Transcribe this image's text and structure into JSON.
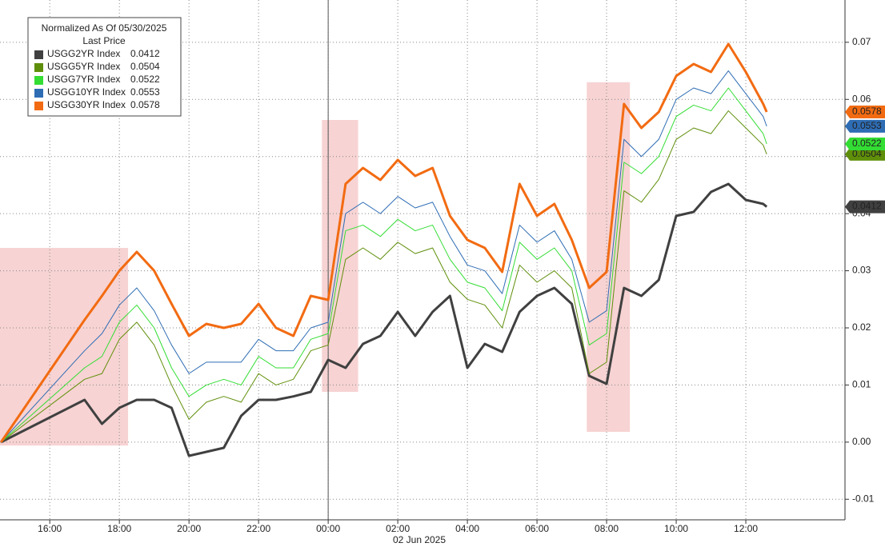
{
  "chart_data": {
    "type": "line",
    "legend_title": "Normalized As Of 05/30/2025",
    "legend_subtitle": "Last Price",
    "x_annotation": "02 Jun 2025",
    "x": [
      14.6,
      17.0,
      17.5,
      18.0,
      18.5,
      19.0,
      19.5,
      20.0,
      20.5,
      21.0,
      21.5,
      22.0,
      22.5,
      23.0,
      23.5,
      24.0,
      24.5,
      25.0,
      25.5,
      26.0,
      26.5,
      27.0,
      27.5,
      28.0,
      28.5,
      29.0,
      29.5,
      30.0,
      30.5,
      31.0,
      31.5,
      32.0,
      32.5,
      33.0,
      33.5,
      34.0,
      34.5,
      35.0,
      35.5,
      36.0,
      36.5,
      36.6
    ],
    "series": [
      {
        "name": "USGG2YR Index",
        "last_price": 0.0412,
        "color": "#404040",
        "width": 3,
        "values": [
          0,
          0.0074,
          0.0032,
          0.006,
          0.0074,
          0.0074,
          0.006,
          -0.0024,
          -0.0017,
          -0.001,
          0.0046,
          0.0074,
          0.0074,
          0.008,
          0.0088,
          0.0144,
          0.013,
          0.0172,
          0.0186,
          0.0228,
          0.0186,
          0.0228,
          0.0256,
          0.013,
          0.0172,
          0.0158,
          0.0228,
          0.0256,
          0.027,
          0.0242,
          0.0116,
          0.0102,
          0.027,
          0.0256,
          0.0284,
          0.0396,
          0.0403,
          0.0438,
          0.0452,
          0.0424,
          0.0417,
          0.0412
        ]
      },
      {
        "name": "USGG5YR Index",
        "last_price": 0.0504,
        "color": "#5f8f0a",
        "width": 1,
        "values": [
          0,
          0.011,
          0.012,
          0.018,
          0.021,
          0.017,
          0.01,
          0.004,
          0.007,
          0.008,
          0.007,
          0.012,
          0.01,
          0.011,
          0.016,
          0.017,
          0.032,
          0.034,
          0.032,
          0.035,
          0.033,
          0.034,
          0.028,
          0.025,
          0.024,
          0.02,
          0.031,
          0.028,
          0.03,
          0.027,
          0.012,
          0.014,
          0.044,
          0.042,
          0.046,
          0.053,
          0.055,
          0.054,
          0.058,
          0.055,
          0.052,
          0.0504
        ]
      },
      {
        "name": "USGG7YR Index",
        "last_price": 0.0522,
        "color": "#33dd33",
        "width": 1,
        "values": [
          0,
          0.013,
          0.015,
          0.021,
          0.024,
          0.02,
          0.013,
          0.008,
          0.01,
          0.011,
          0.01,
          0.015,
          0.013,
          0.013,
          0.018,
          0.019,
          0.037,
          0.038,
          0.036,
          0.039,
          0.037,
          0.038,
          0.032,
          0.028,
          0.027,
          0.023,
          0.035,
          0.032,
          0.034,
          0.03,
          0.017,
          0.019,
          0.049,
          0.047,
          0.05,
          0.057,
          0.059,
          0.058,
          0.062,
          0.058,
          0.054,
          0.0522
        ]
      },
      {
        "name": "USGG10YR Index",
        "last_price": 0.0553,
        "color": "#2e6db4",
        "width": 1,
        "values": [
          0,
          0.016,
          0.019,
          0.024,
          0.027,
          0.023,
          0.017,
          0.012,
          0.014,
          0.014,
          0.014,
          0.018,
          0.016,
          0.016,
          0.02,
          0.021,
          0.04,
          0.042,
          0.04,
          0.043,
          0.041,
          0.042,
          0.036,
          0.031,
          0.03,
          0.026,
          0.038,
          0.035,
          0.037,
          0.032,
          0.021,
          0.023,
          0.053,
          0.05,
          0.053,
          0.06,
          0.062,
          0.061,
          0.065,
          0.061,
          0.057,
          0.0553
        ]
      },
      {
        "name": "USGG30YR Index",
        "last_price": 0.0578,
        "color": "#f26b12",
        "width": 3,
        "values": [
          0,
          0.0214,
          0.0256,
          0.03,
          0.0333,
          0.03,
          0.0242,
          0.0186,
          0.0207,
          0.02,
          0.0207,
          0.0242,
          0.02,
          0.0186,
          0.0256,
          0.0249,
          0.0452,
          0.048,
          0.0459,
          0.0494,
          0.0466,
          0.048,
          0.0396,
          0.0354,
          0.034,
          0.0298,
          0.0452,
          0.0396,
          0.0417,
          0.0354,
          0.027,
          0.0298,
          0.0592,
          0.055,
          0.0578,
          0.0641,
          0.0662,
          0.0648,
          0.0697,
          0.0648,
          0.0592,
          0.0578
        ]
      }
    ],
    "highlights": [
      {
        "x": [
          14.57,
          18.25
        ],
        "y": [
          -0.0006,
          0.034
        ]
      },
      {
        "x": [
          23.82,
          24.86
        ],
        "y": [
          0.0088,
          0.0564
        ]
      },
      {
        "x": [
          31.43,
          32.67
        ],
        "y": [
          0.0018,
          0.063
        ]
      }
    ],
    "highlight_color": "#f4c4c4",
    "day_divider": 24,
    "xlim": [
      14.57,
      38.85
    ],
    "ylim": [
      -0.0136,
      0.0774
    ],
    "xticks": [
      {
        "value": 16,
        "label": "16:00"
      },
      {
        "value": 18,
        "label": "18:00"
      },
      {
        "value": 20,
        "label": "20:00"
      },
      {
        "value": 22,
        "label": "22:00"
      },
      {
        "value": 24,
        "label": "00:00"
      },
      {
        "value": 26,
        "label": "02:00"
      },
      {
        "value": 28,
        "label": "04:00"
      },
      {
        "value": 30,
        "label": "06:00"
      },
      {
        "value": 32,
        "label": "08:00"
      },
      {
        "value": 34,
        "label": "10:00"
      },
      {
        "value": 36,
        "label": "12:00"
      }
    ],
    "yticks": [
      -0.01,
      {
        "value": 0,
        "label": "0.00"
      },
      0.01,
      0.02,
      0.03,
      0.04,
      0.05,
      0.06,
      0.07
    ],
    "grid": true
  }
}
